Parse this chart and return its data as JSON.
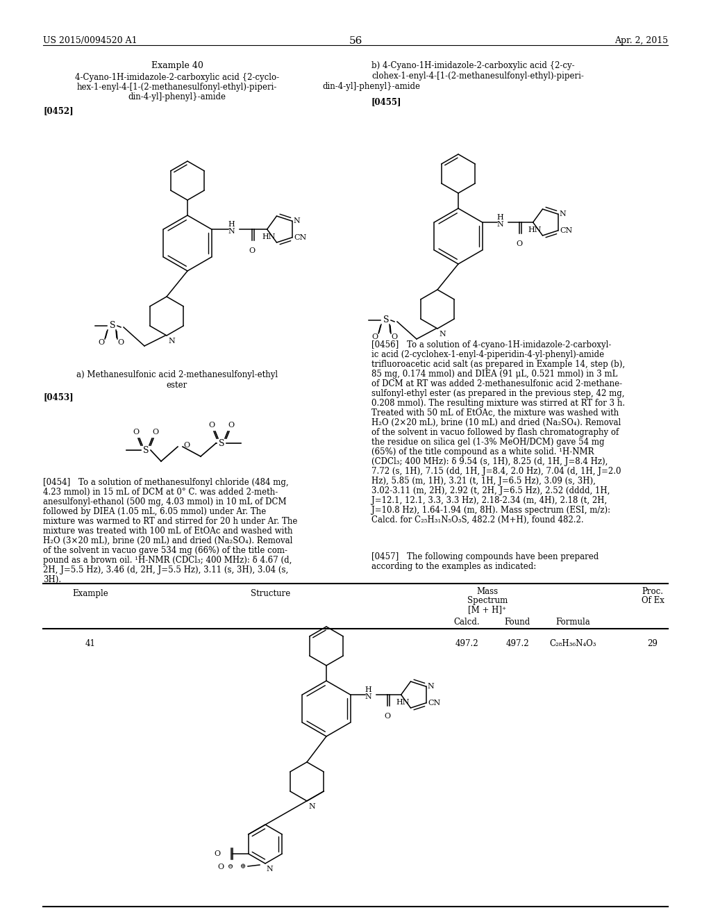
{
  "page_num": "56",
  "patent_left": "US 2015/0094520 A1",
  "patent_right": "Apr. 2, 2015",
  "bg_color": "#ffffff",
  "left_col_title1": "Example 40",
  "left_col_title2": "4-Cyano-1H-imidazole-2-carboxylic acid {2-cyclo-",
  "left_col_title3": "hex-1-enyl-4-[1-(2-methanesulfonyl-ethyl)-piperi-",
  "left_col_title4": "din-4-yl]-phenyl}-amide",
  "ref0452": "[0452]",
  "right_col_title1": "b) 4-Cyano-1H-imidazole-2-carboxylic acid {2-cy-",
  "right_col_title2": "clohex-1-enyl-4-[1-(2-methanesulfonyl-ethyl)-piperi-",
  "right_col_title3": "din-4-yl]-phenyl}-amide",
  "ref0455": "[0455]",
  "sub_a1": "a) Methanesulfonic acid 2-methanesulfonyl-ethyl",
  "sub_a2": "ester",
  "ref0453": "[0453]",
  "ref0454_lines": [
    "[0454] To a solution of methanesulfonyl chloride (484 mg,",
    "4.23 mmol) in 15 mL of DCM at 0° C. was added 2-meth-",
    "anesulfonyl-ethanol (500 mg, 4.03 mmol) in 10 mL of DCM",
    "followed by DIEA (1.05 mL, 6.05 mmol) under Ar. The",
    "mixture was warmed to RT and stirred for 20 h under Ar. The",
    "mixture was treated with 100 mL of EtOAc and washed with",
    "H₂O (3×20 mL), brine (20 mL) and dried (Na₂SO₄). Removal",
    "of the solvent in vacuo gave 534 mg (66%) of the title com-",
    "pound as a brown oil. ¹H-NMR (CDCl₃; 400 MHz): δ 4.67 (d,",
    "2H, J=5.5 Hz), 3.46 (d, 2H, J=5.5 Hz), 3.11 (s, 3H), 3.04 (s,",
    "3H)."
  ],
  "ref0456_lines": [
    "[0456] To a solution of 4-cyano-1H-imidazole-2-carboxyl-",
    "ic acid (2-cyclohex-1-enyl-4-piperidin-4-yl-phenyl)-amide",
    "trifluoroacetic acid salt (as prepared in Example 14, step (b),",
    "85 mg, 0.174 mmol) and DIEA (91 μL, 0.521 mmol) in 3 mL",
    "of DCM at RT was added 2-methanesulfonic acid 2-methane-",
    "sulfonyl-ethyl ester (as prepared in the previous step, 42 mg,",
    "0.208 mmol). The resulting mixture was stirred at RT for 3 h.",
    "Treated with 50 mL of EtOAc, the mixture was washed with",
    "H₂O (2×20 mL), brine (10 mL) and dried (Na₂SO₄). Removal",
    "of the solvent in vacuo followed by flash chromatography of",
    "the residue on silica gel (1-3% MeOH/DCM) gave 54 mg",
    "(65%) of the title compound as a white solid. ¹H-NMR",
    "(CDCl₃; 400 MHz): δ 9.54 (s, 1H), 8.25 (d, 1H, J=8.4 Hz),",
    "7.72 (s, 1H), 7.15 (dd, 1H, J=8.4, 2.0 Hz), 7.04 (d, 1H, J=2.0",
    "Hz), 5.85 (m, 1H), 3.21 (t, 1H, J=6.5 Hz), 3.09 (s, 3H),",
    "3.02-3.11 (m, 2H), 2.92 (t, 2H, J=6.5 Hz), 2.52 (dddd, 1H,",
    "J=12.1, 12.1, 3.3, 3.3 Hz), 2.18-2.34 (m, 4H), 2.18 (t, 2H,",
    "J=10.8 Hz), 1.64-1.94 (m, 8H). Mass spectrum (ESI, m/z):",
    "Calcd. for C₂₅H₃₁N₅O₃S, 482.2 (M+H), found 482.2."
  ],
  "ref0457_lines": [
    "[0457] The following compounds have been prepared",
    "according to the examples as indicated:"
  ],
  "table_ex": "41",
  "table_calcd": "497.2",
  "table_found": "497.2",
  "table_formula": "C₂₈H₃₆N₄O₃",
  "table_proc": "29"
}
